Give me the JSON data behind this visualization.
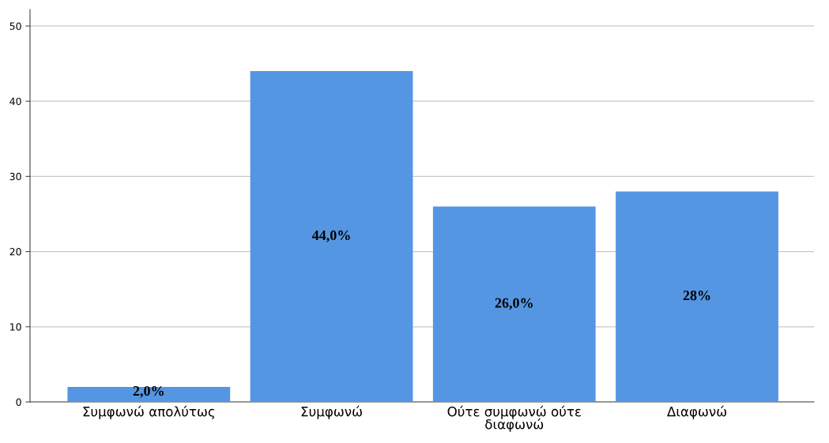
{
  "chart_data": {
    "type": "bar",
    "categories": [
      "Συμφωνώ απολύτως",
      "Συμφωνώ",
      "Ούτε συμφωνώ ούτε\nδιαφωνώ",
      "Διαφωνώ"
    ],
    "values": [
      2,
      44,
      26,
      28
    ],
    "color": "#5596e3",
    "value_labels": [
      "2,0%",
      "44,0%",
      "26,0%",
      "28%"
    ],
    "ylim": [
      0,
      52.2
    ],
    "yticks": [
      0,
      10,
      20,
      30,
      40,
      50
    ],
    "grid": "y",
    "legend": false
  }
}
